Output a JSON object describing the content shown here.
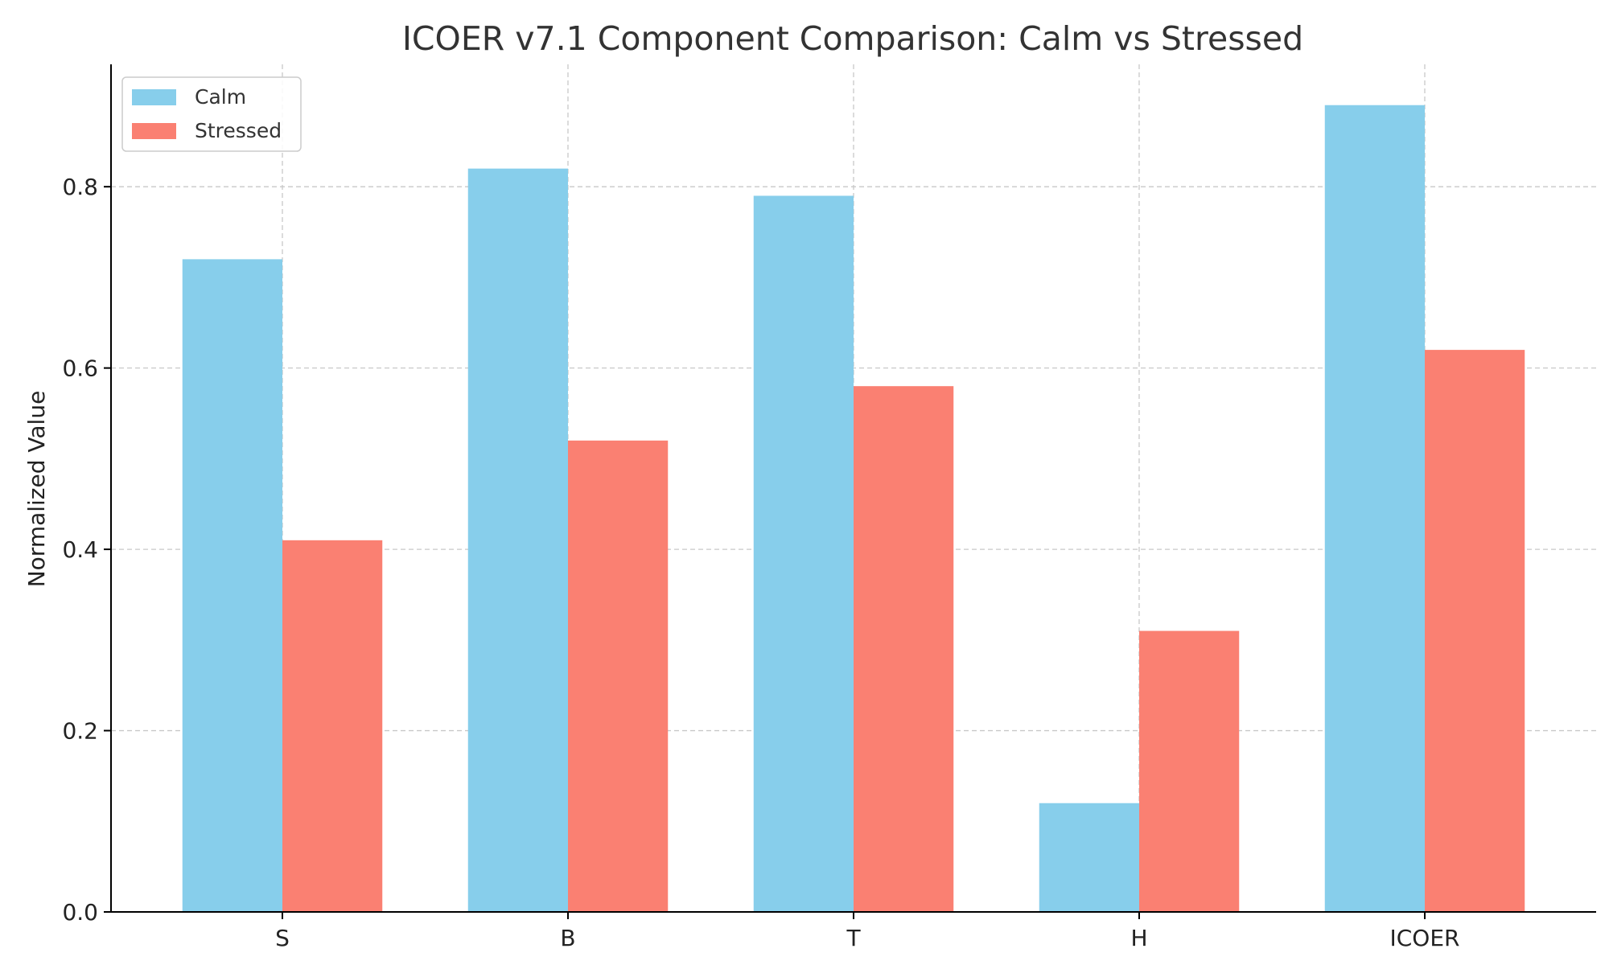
{
  "chart_data": {
    "type": "bar",
    "title": "ICOER v7.1 Component Comparison: Calm vs Stressed",
    "xlabel": "",
    "ylabel": "Normalized Value",
    "categories": [
      "S",
      "B",
      "T",
      "H",
      "ICOER"
    ],
    "series": [
      {
        "name": "Calm",
        "values": [
          0.72,
          0.82,
          0.79,
          0.12,
          0.89
        ],
        "color": "#87CEEB"
      },
      {
        "name": "Stressed",
        "values": [
          0.41,
          0.52,
          0.58,
          0.31,
          0.62
        ],
        "color": "#FA8072"
      }
    ],
    "ylim": [
      0,
      0.935
    ],
    "yticks": [
      "0.0",
      "0.2",
      "0.4",
      "0.6",
      "0.8"
    ],
    "grid": true,
    "legend_position": "top-left"
  }
}
